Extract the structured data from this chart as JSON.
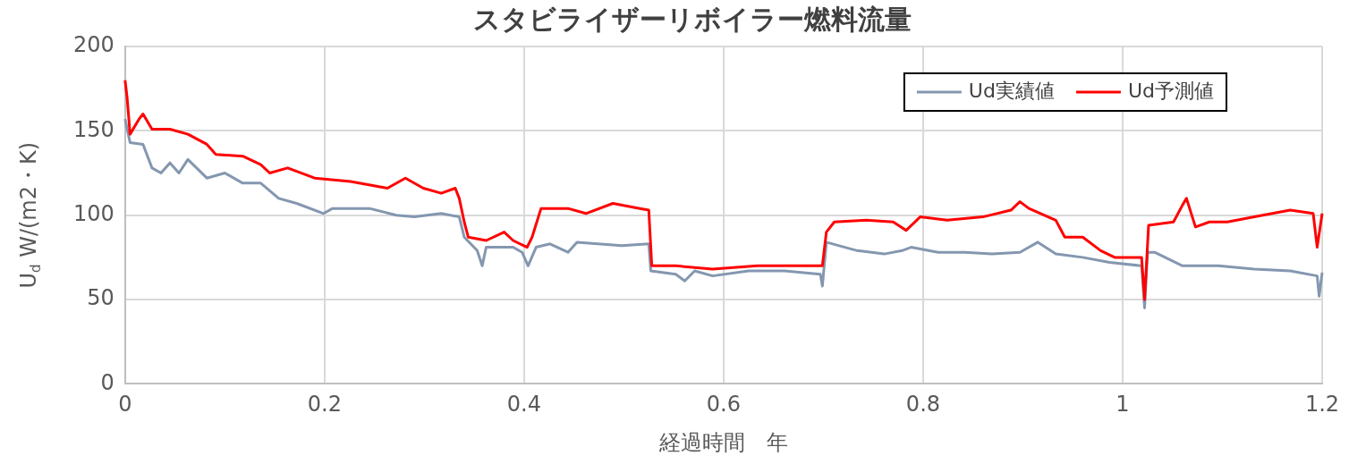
{
  "chart_data": {
    "type": "line",
    "title": "スタビライザーリボイラー燃料流量",
    "xlabel": "経過時間　年",
    "ylabel": "U$_{d}$ W/(m2・K)",
    "xlim": [
      0,
      1.2
    ],
    "xticks": [
      0,
      0.2,
      0.4,
      0.6,
      0.8,
      1,
      1.2
    ],
    "ylim": [
      0,
      200
    ],
    "yticks": [
      0,
      50,
      100,
      150,
      200
    ],
    "grid": true,
    "legend": "top right",
    "marker": "none",
    "line_style": "solid",
    "series": [
      {
        "name": "Ud実績値",
        "color": "#8497b0",
        "x": [
          0,
          0.005,
          0.018,
          0.027,
          0.036,
          0.045,
          0.054,
          0.063,
          0.082,
          0.1,
          0.118,
          0.136,
          0.154,
          0.172,
          0.199,
          0.208,
          0.245,
          0.272,
          0.29,
          0.317,
          0.335,
          0.34,
          0.353,
          0.358,
          0.362,
          0.389,
          0.398,
          0.404,
          0.412,
          0.426,
          0.444,
          0.453,
          0.498,
          0.525,
          0.527,
          0.552,
          0.561,
          0.571,
          0.589,
          0.625,
          0.661,
          0.697,
          0.699,
          0.703,
          0.715,
          0.734,
          0.761,
          0.779,
          0.788,
          0.815,
          0.842,
          0.869,
          0.897,
          0.915,
          0.933,
          0.96,
          0.987,
          1.019,
          1.022,
          1.025,
          1.032,
          1.06,
          1.096,
          1.132,
          1.168,
          1.195,
          1.197,
          1.2
        ],
        "values": [
          157,
          143,
          142,
          128,
          125,
          131,
          125,
          133,
          122,
          125,
          119,
          119,
          110,
          107,
          101,
          104,
          104,
          100,
          99,
          101,
          99,
          87,
          79,
          70,
          81,
          81,
          78,
          70,
          81,
          83,
          78,
          84,
          82,
          83,
          67,
          65,
          61,
          67,
          64,
          67,
          67,
          65,
          58,
          84,
          82,
          79,
          77,
          79,
          81,
          78,
          78,
          77,
          78,
          84,
          77,
          75,
          72,
          70,
          45,
          78,
          78,
          70,
          70,
          68,
          67,
          64,
          52,
          66
        ]
      },
      {
        "name": "Ud予測値",
        "color": "#ff0000",
        "x": [
          0,
          0.002,
          0.005,
          0.014,
          0.018,
          0.027,
          0.045,
          0.063,
          0.082,
          0.091,
          0.118,
          0.136,
          0.145,
          0.163,
          0.19,
          0.226,
          0.263,
          0.281,
          0.299,
          0.317,
          0.331,
          0.335,
          0.34,
          0.344,
          0.362,
          0.38,
          0.389,
          0.403,
          0.408,
          0.417,
          0.444,
          0.462,
          0.489,
          0.516,
          0.525,
          0.528,
          0.552,
          0.589,
          0.634,
          0.679,
          0.699,
          0.703,
          0.711,
          0.743,
          0.77,
          0.783,
          0.797,
          0.824,
          0.86,
          0.888,
          0.897,
          0.906,
          0.933,
          0.942,
          0.96,
          0.978,
          0.992,
          1.019,
          1.022,
          1.026,
          1.051,
          1.06,
          1.064,
          1.073,
          1.087,
          1.105,
          1.132,
          1.168,
          1.191,
          1.195,
          1.2
        ],
        "values": [
          180,
          170,
          148,
          157,
          160,
          151,
          151,
          148,
          142,
          136,
          135,
          130,
          125,
          128,
          122,
          120,
          116,
          122,
          116,
          113,
          116,
          110,
          96,
          87,
          85,
          90,
          85,
          81,
          87,
          104,
          104,
          101,
          107,
          104,
          103,
          70,
          70,
          68,
          70,
          70,
          70,
          90,
          96,
          97,
          96,
          91,
          99,
          97,
          99,
          103,
          108,
          104,
          97,
          87,
          87,
          79,
          75,
          75,
          50,
          94,
          96,
          106,
          110,
          93,
          96,
          96,
          99,
          103,
          101,
          81,
          101
        ]
      }
    ]
  }
}
